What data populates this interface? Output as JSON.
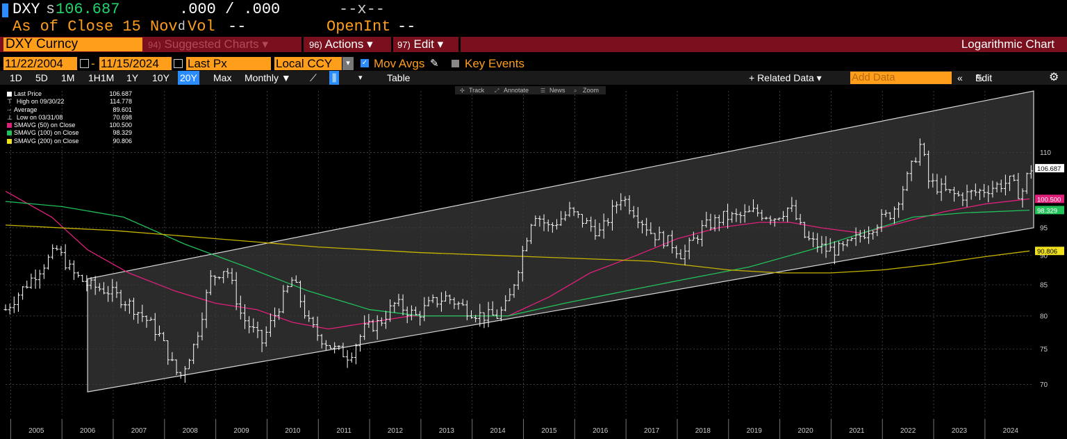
{
  "quote": {
    "ticker": "DXY",
    "price_prefix": "s",
    "price": "106.687",
    "bid_ask": ".000 / .000",
    "chg": "--x--",
    "as_of": "As of Close 15 Nov",
    "d": "d",
    "vol_label": "Vol",
    "vol_value": "--",
    "openint_label": "OpenInt",
    "openint_value": "--"
  },
  "toolbar": {
    "security": "DXY Curncy",
    "suggested_num": "94)",
    "suggested": "Suggested Charts",
    "actions_num": "96)",
    "actions": "Actions",
    "edit_num": "97)",
    "edit": "Edit",
    "chart_mode": "Logarithmic Chart"
  },
  "date_bar": {
    "start": "11/22/2004",
    "dash": "-",
    "end": "11/15/2024",
    "field": "Last Px",
    "currency": "Local CCY",
    "mov_avgs": "Mov Avgs",
    "key_events": "Key Events"
  },
  "tabs": {
    "periods": [
      "1D",
      "5D",
      "1M",
      "1H1M",
      "1Y",
      "10Y",
      "20Y",
      "Max"
    ],
    "selected": "20Y",
    "freq": "Monthly ▼",
    "table": "Table",
    "related": "+ Related Data ▾",
    "add_data_placeholder": "Add Data",
    "edit_chart": "Edit Chart"
  },
  "chart_tools": [
    "Track",
    "Annotate",
    "News",
    "Zoom"
  ],
  "legend": [
    {
      "label": "Last Price",
      "value": "106.687",
      "color": "#ffffff"
    },
    {
      "label": "High on 09/30/22",
      "value": "114.778",
      "color": ""
    },
    {
      "label": "Average",
      "value": "89.601",
      "color": ""
    },
    {
      "label": "Low on 03/31/08",
      "value": "70.698",
      "color": ""
    },
    {
      "label": "SMAVG (50)  on Close",
      "value": "100.500",
      "color": "#e0207a"
    },
    {
      "label": "SMAVG (100)  on Close",
      "value": "98.329",
      "color": "#22c25a"
    },
    {
      "label": "SMAVG (200)  on Close",
      "value": "90.806",
      "color": "#f0e020"
    }
  ],
  "chart_data": {
    "type": "line",
    "title": "",
    "scale": "log",
    "x_label": "",
    "y_label": "",
    "y_ticks": [
      70,
      75,
      80,
      85,
      90,
      95,
      110
    ],
    "x_ticks": [
      "2005",
      "2006",
      "2007",
      "2008",
      "2009",
      "2010",
      "2011",
      "2012",
      "2013",
      "2014",
      "2015",
      "2016",
      "2017",
      "2018",
      "2019",
      "2020",
      "2021",
      "2022",
      "2023",
      "2024"
    ],
    "ylim": [
      66,
      124
    ],
    "xlim": [
      2004.9,
      2024.95
    ],
    "grid": true,
    "series": [
      {
        "name": "Last Price",
        "type": "bar-ohlc",
        "color": "#ffffff",
        "x": [
          2004.9,
          2005.3,
          2005.7,
          2005.9,
          2006.2,
          2006.5,
          2006.9,
          2007.3,
          2007.7,
          2007.9,
          2008.2,
          2008.3,
          2008.6,
          2008.9,
          2009.2,
          2009.5,
          2009.9,
          2010.2,
          2010.5,
          2010.8,
          2011.0,
          2011.3,
          2011.6,
          2011.9,
          2012.2,
          2012.5,
          2012.9,
          2013.2,
          2013.5,
          2013.9,
          2014.2,
          2014.5,
          2014.7,
          2014.9,
          2015.2,
          2015.5,
          2015.9,
          2016.2,
          2016.5,
          2016.9,
          2017.0,
          2017.5,
          2017.9,
          2018.1,
          2018.5,
          2018.9,
          2019.2,
          2019.5,
          2019.9,
          2020.2,
          2020.5,
          2020.9,
          2021.2,
          2021.5,
          2021.9,
          2022.2,
          2022.5,
          2022.75,
          2022.9,
          2023.2,
          2023.5,
          2023.9,
          2024.2,
          2024.5,
          2024.7,
          2024.87
        ],
        "values": [
          81,
          85,
          89,
          91,
          87,
          85,
          84,
          82,
          79,
          77,
          72,
          71,
          76,
          86,
          88,
          80,
          76,
          81,
          86,
          79,
          77,
          75,
          74,
          78,
          79,
          82,
          80,
          82,
          83,
          81,
          80,
          80,
          82,
          88,
          98,
          95,
          98,
          96,
          94,
          101,
          100,
          94,
          92,
          90,
          95,
          97,
          97,
          98,
          97,
          99,
          93,
          91,
          91,
          93,
          96,
          98,
          105,
          112,
          104,
          102,
          101,
          102,
          103,
          104,
          101,
          106.687
        ]
      },
      {
        "name": "SMAVG (50)",
        "color": "#e0207a",
        "x": [
          2004.9,
          2005.8,
          2006.5,
          2007.3,
          2008.2,
          2009.0,
          2009.8,
          2010.5,
          2011.2,
          2012.0,
          2012.8,
          2013.7,
          2014.7,
          2015.5,
          2016.3,
          2017.2,
          2018.0,
          2018.8,
          2019.6,
          2020.2,
          2020.8,
          2021.6,
          2022.4,
          2023.2,
          2024.0,
          2024.87
        ],
        "values": [
          102,
          97,
          91,
          87,
          84,
          82,
          81,
          79,
          78,
          79,
          80,
          80,
          80,
          83,
          87,
          90,
          93,
          95,
          96,
          96,
          95,
          94,
          96,
          98,
          99.5,
          100.5
        ]
      },
      {
        "name": "SMAVG (100)",
        "color": "#22c25a",
        "x": [
          2004.9,
          2006.0,
          2007.2,
          2008.4,
          2009.6,
          2010.8,
          2012.0,
          2013.0,
          2014.0,
          2014.7,
          2015.8,
          2017.0,
          2018.2,
          2019.4,
          2020.6,
          2021.6,
          2022.6,
          2023.6,
          2024.87
        ],
        "values": [
          100,
          99,
          97,
          92,
          88,
          84,
          81,
          80,
          80,
          80,
          82,
          84,
          86,
          88,
          91,
          94,
          97,
          97.8,
          98.3
        ]
      },
      {
        "name": "SMAVG (200)",
        "color": "#c8b400",
        "x": [
          2004.9,
          2007.0,
          2009.0,
          2011.0,
          2013.0,
          2014.5,
          2016.0,
          2017.5,
          2019.0,
          2020.0,
          2021.0,
          2022.0,
          2023.0,
          2024.0,
          2024.87
        ],
        "values": [
          95.5,
          94.5,
          93,
          91.5,
          90.5,
          90,
          89.5,
          89,
          87.5,
          87,
          87,
          87.5,
          88.5,
          89.8,
          90.8
        ]
      }
    ],
    "channel": {
      "x": [
        2006.5,
        2024.95
      ],
      "upper": [
        86,
        124
      ],
      "lower": [
        69,
        95
      ]
    },
    "right_labels": [
      {
        "value": 106.687,
        "text": "106.687",
        "bg": "#ffffff",
        "fg": "#000000"
      },
      {
        "value": 100.5,
        "text": "100.500",
        "bg": "#e0207a",
        "fg": "#ffffff"
      },
      {
        "value": 98.329,
        "text": "98.329",
        "bg": "#22c25a",
        "fg": "#ffffff"
      },
      {
        "value": 90.806,
        "text": "90.806",
        "bg": "#f0e020",
        "fg": "#000000"
      }
    ]
  }
}
